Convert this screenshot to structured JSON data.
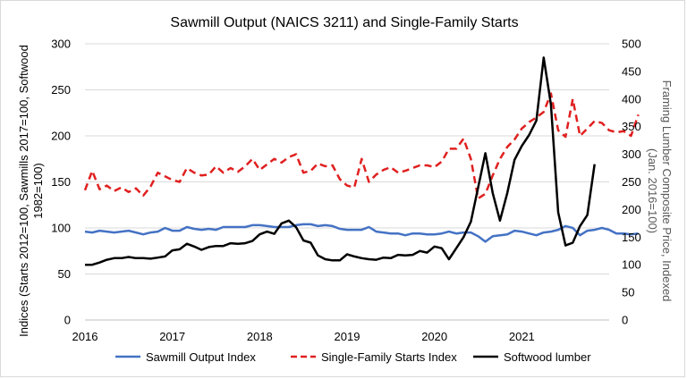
{
  "chart_data": {
    "type": "line",
    "title": "Sawmill Output (NAICS 3211) and Single-Family Starts",
    "ylabel_left": "Indices (Starts 2012=100, Sawmills 2017=100, Softwood 1982=100)",
    "ylabel_right": "Framing Lumber Composite Price, Indexed (Jan. 2016=100)",
    "xlabel": "",
    "x_ticks": [
      "2016",
      "2017",
      "2018",
      "2019",
      "2020",
      "2021"
    ],
    "ylim_left": [
      0,
      300
    ],
    "yticks_left": [
      "0",
      "50",
      "100",
      "150",
      "200",
      "250",
      "300"
    ],
    "ylim_right": [
      0,
      500
    ],
    "yticks_right": [
      "0",
      "50",
      "100",
      "150",
      "200",
      "250",
      "300",
      "350",
      "400",
      "450",
      "500"
    ],
    "grid": "horizontal",
    "legend_position": "bottom",
    "colors": {
      "sawmill": "#4472c4",
      "starts": "#e02020",
      "softwood": "#000000",
      "grid": "#d9d9d9"
    },
    "x_start": "2016-01",
    "frequency": "monthly",
    "series": [
      {
        "name": "Sawmill Output Index",
        "axis": "left",
        "style": "solid",
        "values": [
          96,
          95,
          97,
          96,
          95,
          96,
          97,
          95,
          93,
          95,
          96,
          100,
          97,
          97,
          101,
          99,
          98,
          99,
          98,
          101,
          101,
          101,
          101,
          103,
          103,
          102,
          101,
          101,
          101,
          103,
          104,
          104,
          102,
          103,
          102,
          99,
          98,
          98,
          98,
          101,
          96,
          95,
          94,
          94,
          92,
          94,
          94,
          93,
          93,
          94,
          96,
          94,
          95,
          95,
          91,
          85,
          91,
          92,
          93,
          97,
          96,
          94,
          92,
          95,
          96,
          98,
          102,
          100,
          92,
          97,
          98,
          100,
          98,
          94,
          94,
          93,
          94
        ]
      },
      {
        "name": "Single-Family Starts Index",
        "axis": "left",
        "style": "dashed",
        "values": [
          141,
          162,
          142,
          146,
          140,
          144,
          139,
          143,
          135,
          145,
          160,
          156,
          152,
          150,
          165,
          160,
          157,
          158,
          167,
          160,
          165,
          161,
          167,
          175,
          163,
          169,
          175,
          171,
          177,
          180,
          160,
          162,
          170,
          167,
          168,
          153,
          146,
          144,
          175,
          150,
          158,
          163,
          166,
          160,
          162,
          165,
          168,
          168,
          166,
          172,
          186,
          186,
          197,
          175,
          132,
          137,
          157,
          175,
          188,
          196,
          208,
          215,
          220,
          226,
          246,
          206,
          199,
          240,
          200,
          208,
          216,
          214,
          206,
          204,
          205,
          200,
          223
        ]
      },
      {
        "name": "Softwood lumber",
        "axis": "right",
        "style": "solid",
        "values": [
          100,
          100,
          104,
          109,
          112,
          112,
          114,
          112,
          112,
          111,
          113,
          115,
          126,
          128,
          138,
          133,
          127,
          132,
          134,
          134,
          139,
          138,
          139,
          143,
          155,
          160,
          156,
          175,
          180,
          168,
          144,
          140,
          117,
          110,
          108,
          108,
          119,
          115,
          112,
          110,
          109,
          113,
          112,
          118,
          117,
          118,
          125,
          122,
          133,
          130,
          110,
          130,
          150,
          178,
          240,
          302,
          230,
          180,
          230,
          290,
          315,
          335,
          361,
          475,
          390,
          195,
          135,
          140,
          170,
          190,
          282
        ]
      }
    ]
  }
}
